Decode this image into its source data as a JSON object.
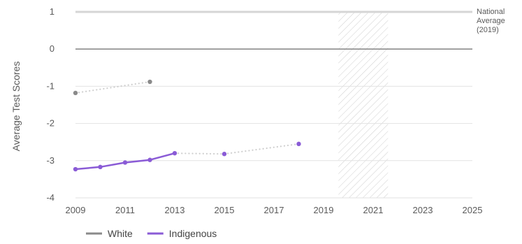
{
  "chart_data": {
    "type": "line",
    "ylabel": "Average Test Scores",
    "xlabel": "",
    "xlim": [
      2009,
      2025
    ],
    "ylim": [
      -4,
      1
    ],
    "x_ticks": [
      "2009",
      "2011",
      "2013",
      "2015",
      "2017",
      "2019",
      "2021",
      "2023",
      "2025"
    ],
    "y_ticks": [
      "1",
      "0",
      "-1",
      "-2",
      "-3",
      "-4"
    ],
    "reference_line": {
      "label_lines": [
        "National",
        "Average",
        "(2019)"
      ],
      "y": 1
    },
    "zero_line": 0,
    "shaded_region": {
      "x": [
        2019.6,
        2021.6
      ],
      "style": "hatched"
    },
    "grid": "horizontal",
    "legend_position": "bottom-left",
    "series": [
      {
        "name": "White",
        "color": "#8a8a8a",
        "points": [
          {
            "x": 2009,
            "y": -1.18
          },
          {
            "x": 2012,
            "y": -0.88
          }
        ],
        "segments": [
          {
            "from": 0,
            "to": 1,
            "style": "dotted"
          }
        ]
      },
      {
        "name": "Indigenous",
        "color": "#8a5bd6",
        "points": [
          {
            "x": 2009,
            "y": -3.23
          },
          {
            "x": 2010,
            "y": -3.17
          },
          {
            "x": 2011,
            "y": -3.05
          },
          {
            "x": 2012,
            "y": -2.98
          },
          {
            "x": 2013,
            "y": -2.8
          },
          {
            "x": 2015,
            "y": -2.82
          },
          {
            "x": 2018,
            "y": -2.55
          }
        ],
        "segments": [
          {
            "from": 0,
            "to": 4,
            "style": "solid"
          },
          {
            "from": 4,
            "to": 5,
            "style": "dotted"
          },
          {
            "from": 5,
            "to": 6,
            "style": "dotted"
          }
        ]
      }
    ]
  }
}
